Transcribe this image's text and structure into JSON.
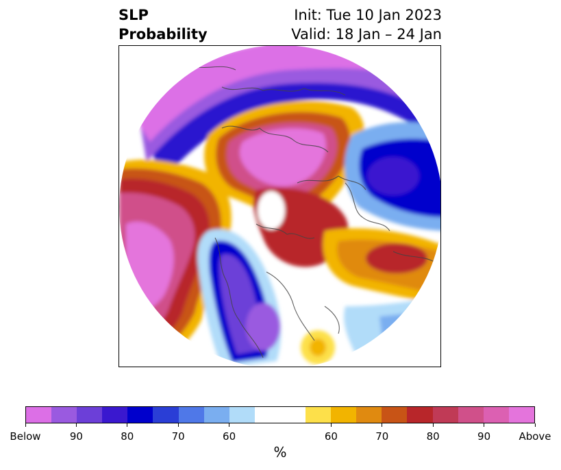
{
  "title": {
    "left_line1": "SLP",
    "left_line2": "Probability",
    "right_line1": "Init: Tue 10 Jan 2023",
    "right_line2": "Valid: 18 Jan – 24 Jan"
  },
  "colorbar": {
    "unit": "%",
    "tick_labels": [
      "Below",
      "90",
      "80",
      "70",
      "60",
      "60",
      "70",
      "80",
      "90",
      "Above"
    ],
    "colors": [
      "#dc6fe6",
      "#9a5ae0",
      "#6c3fd8",
      "#3a18cf",
      "#0000cc",
      "#2a3ed6",
      "#4f78e8",
      "#7aaef0",
      "#b1dcf9",
      "#ffffff",
      "#ffffff",
      "#fde04a",
      "#f2b400",
      "#e08a10",
      "#c85416",
      "#b8262a",
      "#c03a56",
      "#d0508a",
      "#dc60b2",
      "#e474dc"
    ]
  },
  "map": {
    "projection": "north-polar-stereographic",
    "variable": "sea-level-pressure-probability"
  }
}
